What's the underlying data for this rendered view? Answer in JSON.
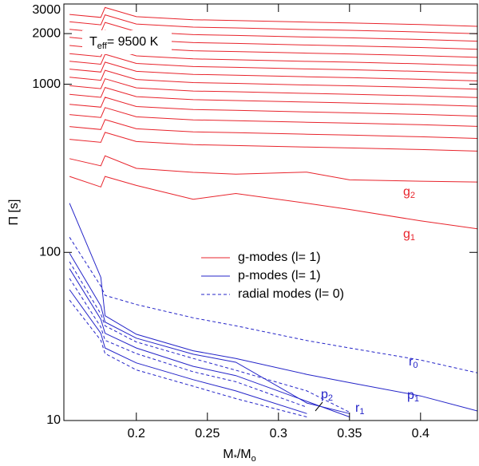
{
  "chart_data": {
    "type": "line",
    "annotation": {
      "main": "T",
      "sub": "eff",
      "rest": "= 9500 K"
    },
    "xlabel": {
      "main": "M",
      "sub1": "*",
      "mid": "/M",
      "sub2": "o"
    },
    "ylabel": "Π [s]",
    "log_y": true,
    "xlim": [
      0.149,
      0.44
    ],
    "ylim": [
      10,
      3000
    ],
    "xticks": [
      0.2,
      0.25,
      0.3,
      0.35,
      0.4
    ],
    "yticks": [
      10,
      100,
      1000,
      2000,
      3000
    ],
    "legend_position": "center",
    "legend": [
      {
        "label": "g-modes (l= 1)",
        "color": "#e8242c",
        "dash": false
      },
      {
        "label": "p-modes (l= 1)",
        "color": "#2424c8",
        "dash": false
      },
      {
        "label": "radial modes (l= 0)",
        "color": "#2424c8",
        "dash": true
      }
    ],
    "x": [
      0.153,
      0.175,
      0.178,
      0.2,
      0.24,
      0.27,
      0.32,
      0.35,
      0.4,
      0.44
    ],
    "series": [
      {
        "name": "g",
        "sub": "1",
        "mode": 0,
        "values": [
          283,
          245,
          283,
          250,
          207,
          224,
          196,
          180,
          154,
          138
        ]
      },
      {
        "name": "g",
        "sub": "2",
        "mode": 0,
        "values": [
          361,
          327,
          375,
          316,
          299,
          292,
          300,
          270,
          265,
          262
        ]
      },
      {
        "mode": 0,
        "values": [
          470,
          451,
          517,
          456,
          437,
          432,
          423,
          418,
          409,
          400
        ]
      },
      {
        "mode": 0,
        "values": [
          560,
          538,
          616,
          543,
          521,
          515,
          504,
          498,
          487,
          476
        ]
      },
      {
        "mode": 0,
        "values": [
          660,
          634,
          726,
          640,
          614,
          607,
          594,
          587,
          574,
          561
        ]
      },
      {
        "mode": 0,
        "values": [
          760,
          730,
          836,
          737,
          707,
          699,
          684,
          676,
          661,
          646
        ]
      },
      {
        "mode": 0,
        "values": [
          870,
          835,
          957,
          844,
          809,
          800,
          783,
          774,
          757,
          740
        ]
      },
      {
        "mode": 0,
        "values": [
          980,
          941,
          1078,
          951,
          911,
          902,
          882,
          872,
          853,
          833
        ]
      },
      {
        "mode": 0,
        "values": [
          1100,
          1056,
          1210,
          1067,
          1023,
          1012,
          990,
          979,
          957,
          935
        ]
      },
      {
        "mode": 0,
        "values": [
          1230,
          1181,
          1353,
          1193,
          1144,
          1132,
          1107,
          1095,
          1070,
          1046
        ]
      },
      {
        "mode": 0,
        "values": [
          1370,
          1315,
          1507,
          1329,
          1274,
          1260,
          1233,
          1219,
          1192,
          1165
        ]
      },
      {
        "mode": 0,
        "values": [
          1520,
          1459,
          1672,
          1474,
          1414,
          1398,
          1368,
          1353,
          1322,
          1292
        ]
      },
      {
        "mode": 0,
        "values": [
          1700,
          1632,
          1870,
          1649,
          1581,
          1564,
          1530,
          1513,
          1479,
          1445
        ]
      },
      {
        "mode": 0,
        "values": [
          1900,
          1824,
          2090,
          1843,
          1767,
          1748,
          1710,
          1691,
          1653,
          1615
        ]
      },
      {
        "mode": 0,
        "values": [
          2120,
          2035,
          2332,
          2056,
          1972,
          1950,
          1908,
          1887,
          1844,
          1802
        ]
      },
      {
        "mode": 0,
        "values": [
          2350,
          2256,
          2585,
          2280,
          2186,
          2162,
          2115,
          2092,
          2045,
          1998
        ]
      },
      {
        "mode": 0,
        "values": [
          2600,
          2496,
          2860,
          2522,
          2418,
          2392,
          2340,
          2314,
          2262,
          2210
        ]
      },
      {
        "name": "p",
        "sub": "1",
        "mode": 1,
        "values": [
          196,
          71,
          42,
          32.6,
          26,
          23.4,
          18.8,
          16.8,
          14,
          11.4
        ]
      },
      {
        "name": "r",
        "sub": "0",
        "mode": 2,
        "values": [
          123,
          63,
          55.5,
          49,
          40.8,
          36.6,
          29.9,
          27,
          22.9,
          19.2
        ]
      },
      {
        "name": "p",
        "sub": "2",
        "mode": 1,
        "values": [
          99,
          48,
          38.5,
          30.9,
          24.8,
          22.2,
          12.7,
          11,
          null,
          null
        ]
      },
      {
        "name": "r",
        "sub": "1",
        "mode": 2,
        "values": [
          88,
          43,
          36.6,
          29.3,
          23.4,
          19.9,
          15,
          11.2,
          null,
          null
        ]
      },
      {
        "mode": 1,
        "values": [
          80,
          40,
          33,
          27,
          21,
          18.5,
          13,
          10.5,
          null,
          null
        ]
      },
      {
        "mode": 2,
        "values": [
          70,
          36,
          30,
          25,
          19.5,
          17,
          12,
          null,
          null,
          null
        ]
      },
      {
        "mode": 1,
        "values": [
          60,
          33,
          27,
          22,
          17.5,
          15,
          11,
          null,
          null,
          null
        ]
      },
      {
        "mode": 2,
        "values": [
          52,
          30,
          25,
          20,
          16,
          13.5,
          10.5,
          null,
          null,
          null
        ]
      }
    ]
  }
}
